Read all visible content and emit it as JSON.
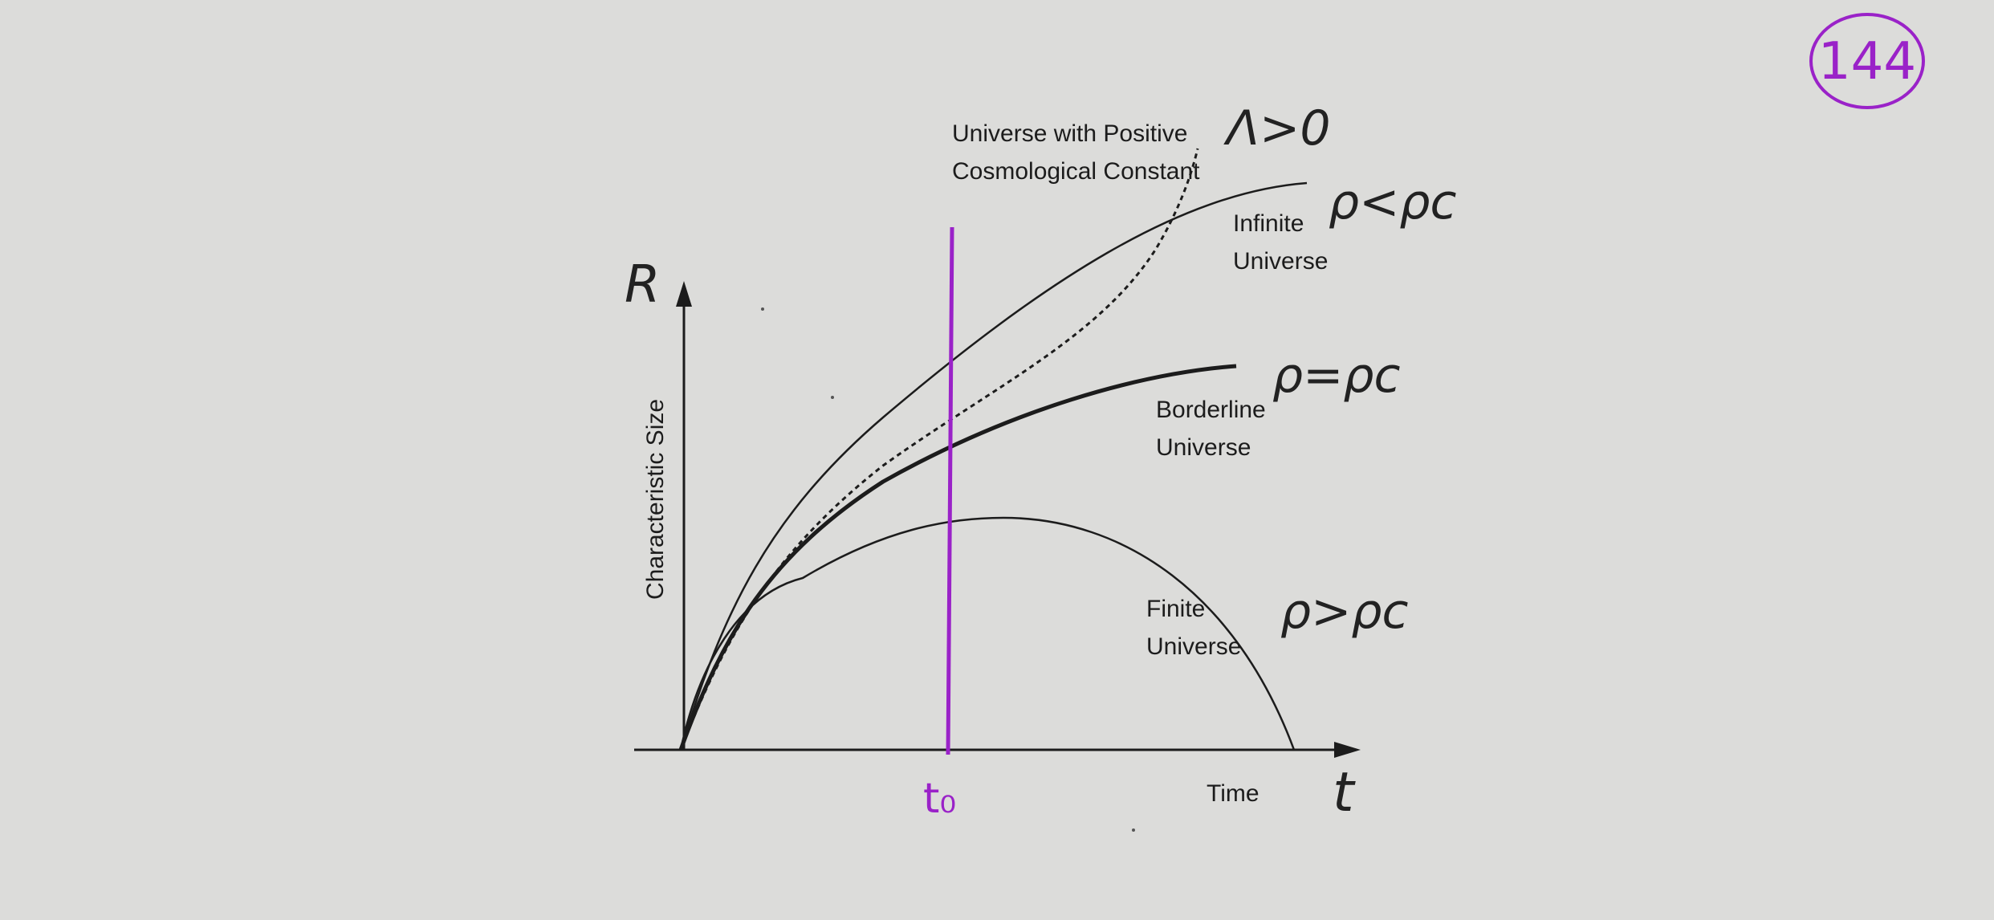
{
  "page": {
    "page_number": "144",
    "accent_color": "#9a22c8",
    "ink_color": "#1c1c1c",
    "paper_color": "#dcdcda"
  },
  "axes": {
    "y_symbol": "R",
    "y_label": "Characteristic Size",
    "x_label": "Time",
    "x_symbol": "t",
    "t0_label": "t₀"
  },
  "curves": {
    "lambda": {
      "label_line1": "Universe with Positive",
      "label_line2": "Cosmological Constant",
      "note": "Λ>0",
      "style": "dotted"
    },
    "infinite": {
      "label_line1": "Infinite",
      "label_line2": "Universe",
      "note": "ρ<ρc"
    },
    "borderline": {
      "label_line1": "Borderline",
      "label_line2": "Universe",
      "note": "ρ=ρc"
    },
    "finite": {
      "label_line1": "Finite",
      "label_line2": "Universe",
      "note": "ρ>ρc"
    }
  }
}
